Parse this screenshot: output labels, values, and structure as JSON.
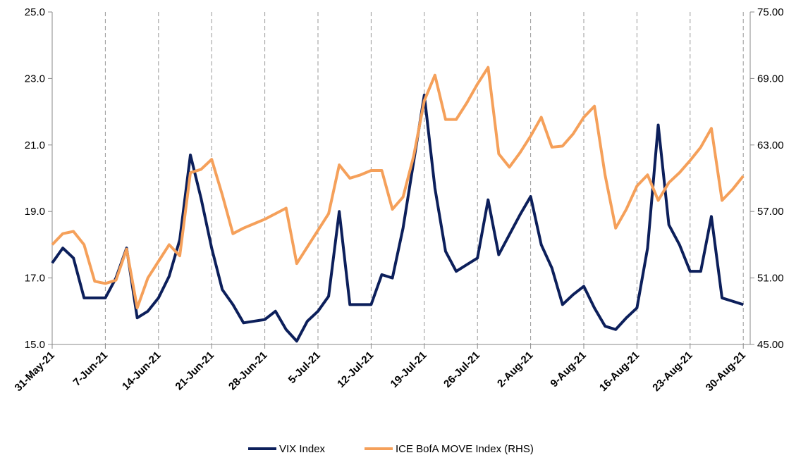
{
  "chart_data": {
    "type": "line",
    "categories": [
      "31-May-21",
      null,
      null,
      null,
      null,
      "7-Jun-21",
      null,
      null,
      null,
      null,
      "14-Jun-21",
      null,
      null,
      null,
      null,
      "21-Jun-21",
      null,
      null,
      null,
      null,
      "28-Jun-21",
      null,
      null,
      null,
      null,
      "5-Jul-21",
      null,
      null,
      null,
      null,
      "12-Jul-21",
      null,
      null,
      null,
      null,
      "19-Jul-21",
      null,
      null,
      null,
      null,
      "26-Jul-21",
      null,
      null,
      null,
      null,
      "2-Aug-21",
      null,
      null,
      null,
      null,
      "9-Aug-21",
      null,
      null,
      null,
      null,
      "16-Aug-21",
      null,
      null,
      null,
      null,
      "23-Aug-21",
      null,
      null,
      null,
      null,
      "30-Aug-21"
    ],
    "series": [
      {
        "name": "VIX Index",
        "color": "#0c1f5b",
        "values": [
          17.45,
          17.9,
          17.6,
          16.4,
          16.4,
          16.4,
          17.0,
          17.9,
          15.8,
          16.0,
          16.4,
          17.05,
          18.15,
          20.7,
          19.4,
          17.9,
          16.65,
          16.2,
          15.65,
          15.7,
          15.75,
          16.0,
          15.45,
          15.1,
          15.7,
          16.0,
          16.45,
          19.0,
          16.2,
          16.2,
          16.2,
          17.1,
          17.0,
          18.5,
          20.5,
          22.5,
          19.7,
          17.8,
          17.2,
          17.4,
          17.6,
          19.35,
          17.7,
          18.3,
          18.9,
          19.45,
          18.0,
          17.3,
          16.2,
          16.5,
          16.75,
          16.1,
          15.55,
          15.45,
          15.8,
          16.1,
          17.9,
          21.6,
          18.6,
          18.0,
          17.2,
          17.2,
          18.85,
          16.4,
          16.3,
          16.2
        ]
      },
      {
        "name": "ICE BofA MOVE Index (RHS)",
        "color": "#f5a05a",
        "axis": "y2",
        "values": [
          54.0,
          55.0,
          55.2,
          54.0,
          50.7,
          50.5,
          50.8,
          53.6,
          48.3,
          51.0,
          52.5,
          54.0,
          53.0,
          60.5,
          60.8,
          61.7,
          58.5,
          55.0,
          55.5,
          55.9,
          56.3,
          56.8,
          57.3,
          52.3,
          53.8,
          55.3,
          56.8,
          61.2,
          60.0,
          60.3,
          60.7,
          60.7,
          57.2,
          58.3,
          62.0,
          67.0,
          69.3,
          65.3,
          65.3,
          66.8,
          68.5,
          70.0,
          62.2,
          61.0,
          62.3,
          63.8,
          65.5,
          62.8,
          62.9,
          64.0,
          65.5,
          66.5,
          60.3,
          55.5,
          57.2,
          59.3,
          60.3,
          58.0,
          59.6,
          60.5,
          61.6,
          62.8,
          64.5,
          58.0,
          59.0,
          60.2
        ]
      }
    ],
    "ylim": [
      15,
      25
    ],
    "yticks": [
      {
        "value": 15,
        "label": "15.0"
      },
      {
        "value": 17,
        "label": "17.0"
      },
      {
        "value": 19,
        "label": "19.0"
      },
      {
        "value": 21,
        "label": "21.0"
      },
      {
        "value": 23,
        "label": "23.0"
      },
      {
        "value": 25,
        "label": "25.0"
      }
    ],
    "y2lim": [
      45,
      75
    ],
    "y2ticks": [
      {
        "value": 45,
        "label": "45.00"
      },
      {
        "value": 51,
        "label": "51.00"
      },
      {
        "value": 57,
        "label": "57.00"
      },
      {
        "value": 63,
        "label": "63.00"
      },
      {
        "value": 69,
        "label": "69.00"
      },
      {
        "value": 75,
        "label": "75.00"
      }
    ],
    "legend": "bottom"
  }
}
